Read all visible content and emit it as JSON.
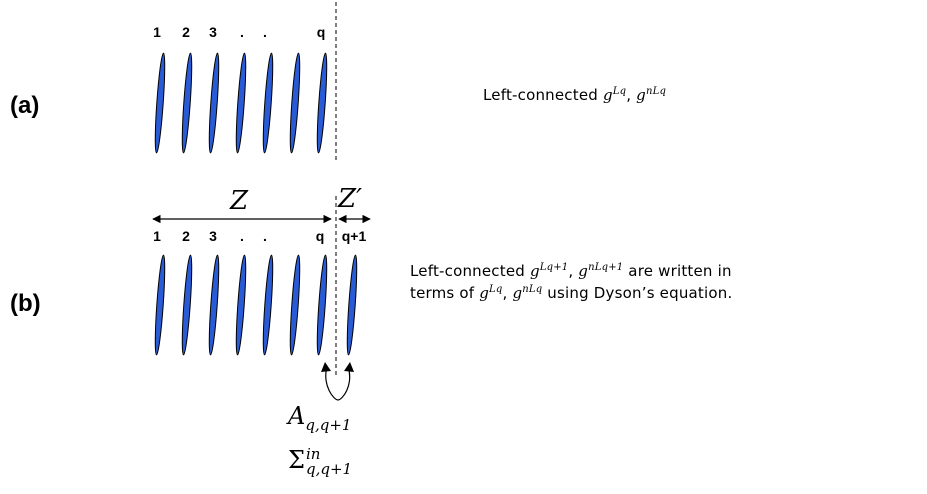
{
  "panel_a": {
    "label": "(a)",
    "indices": [
      "1",
      "2",
      "3",
      ".",
      ".",
      "q"
    ],
    "caption": {
      "prefix": "Left-connected ",
      "g1_base": "g",
      "g1_sup": "Lq",
      "sep": ", ",
      "g2_base": "g",
      "g2_sup": "nLq"
    }
  },
  "panel_b": {
    "label": "(b)",
    "indices": [
      "1",
      "2",
      "3",
      ".",
      ".",
      "q",
      "q+1"
    ],
    "dim_left": "Z",
    "dim_right": "Z′",
    "caption": {
      "prefix": "Left-connected ",
      "g1_base": "g",
      "g1_sup": "Lq+1",
      "sep": ", ",
      "g2_base": "g",
      "g2_sup": "nLq+1",
      "line1_suffix": " are written in",
      "line2_prefix": "terms of ",
      "g3_base": "g",
      "g3_sup": "Lq",
      "sep2": ", ",
      "g4_base": "g",
      "g4_sup": "nLq",
      "line2_suffix": " using Dyson’s equation."
    },
    "coupling": {
      "A_base": "A",
      "A_sub": "q,q+1",
      "Sigma_base": "Σ",
      "Sigma_sup": "in",
      "Sigma_sub": "q,q+1"
    }
  },
  "colors": {
    "layer": "#2a5bd7",
    "outline": "#000000"
  }
}
